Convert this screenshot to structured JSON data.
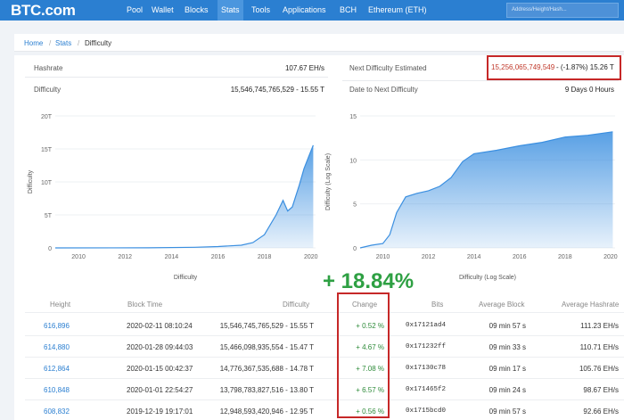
{
  "header": {
    "logo": "BTC.com",
    "nav": [
      "Pool",
      "Wallet",
      "Blocks",
      "Stats",
      "Tools",
      "Applications",
      "BCH",
      "Ethereum (ETH)"
    ],
    "active_nav": "Stats",
    "search_placeholder": "Address/Height/Hash..."
  },
  "breadcrumb": {
    "home": "Home",
    "stats": "Stats",
    "current": "Difficulty",
    "sep": "/"
  },
  "summary": {
    "hashrate_label": "Hashrate",
    "hashrate_value": "107.67 EH/s",
    "difficulty_label": "Difficulty",
    "difficulty_value": "15,546,745,765,529 - 15.55 T",
    "next_label": "Next Difficulty Estimated",
    "next_value": "15,256,065,749,549",
    "next_change": " - (-1.87%) 15.26 T",
    "date_label": "Date to Next Difficulty",
    "date_value": "9 Days 0 Hours"
  },
  "chart_data": [
    {
      "type": "area",
      "xlabel": "Difficulty",
      "ylabel": "Difficulty",
      "x_ticks": [
        "2010",
        "2012",
        "2014",
        "2016",
        "2018",
        "2020"
      ],
      "y_ticks": [
        "0",
        "5T",
        "10T",
        "15T",
        "20T"
      ],
      "xlim": [
        2009,
        2020.2
      ],
      "ylim": [
        0,
        20
      ],
      "y_unit": "T",
      "x": [
        2009.0,
        2013.0,
        2015.0,
        2016.0,
        2017.0,
        2017.5,
        2018.0,
        2018.5,
        2018.8,
        2019.0,
        2019.2,
        2019.5,
        2019.7,
        2019.9,
        2020.1
      ],
      "y": [
        0,
        0.02,
        0.1,
        0.2,
        0.4,
        0.8,
        2.0,
        5.0,
        7.2,
        5.6,
        6.2,
        9.5,
        12.0,
        13.8,
        15.55
      ],
      "color": "#3b8fe0"
    },
    {
      "type": "area",
      "xlabel": "Difficulty (Log Scale)",
      "ylabel": "Difficulty (Log Scale)",
      "x_ticks": [
        "2010",
        "2012",
        "2014",
        "2016",
        "2018",
        "2020"
      ],
      "y_ticks": [
        "0",
        "5",
        "10",
        "15"
      ],
      "xlim": [
        2009,
        2020.2
      ],
      "ylim": [
        0,
        15
      ],
      "x": [
        2009.0,
        2009.5,
        2010.0,
        2010.3,
        2010.6,
        2011.0,
        2011.5,
        2012.0,
        2012.5,
        2013.0,
        2013.5,
        2014.0,
        2015.0,
        2016.0,
        2017.0,
        2018.0,
        2019.0,
        2020.1
      ],
      "y": [
        0,
        0.3,
        0.5,
        1.5,
        4.0,
        5.8,
        6.2,
        6.5,
        7.0,
        8.0,
        9.8,
        10.7,
        11.1,
        11.6,
        12.0,
        12.6,
        12.8,
        13.2
      ],
      "color": "#3b8fe0"
    }
  ],
  "headline_change": "+ 18.84%",
  "table": {
    "headers": [
      "Height",
      "Block Time",
      "Difficulty",
      "Change",
      "Bits",
      "Average Block",
      "Average Hashrate"
    ],
    "rows": [
      [
        "616,896",
        "2020-02-11 08:10:24",
        "15,546,745,765,529 - 15.55 T",
        "+ 0.52 %",
        "0x17121ad4",
        "09 min 57 s",
        "111.23 EH/s"
      ],
      [
        "614,880",
        "2020-01-28 09:44:03",
        "15,466,098,935,554 - 15.47 T",
        "+ 4.67 %",
        "0x171232ff",
        "09 min 33 s",
        "110.71 EH/s"
      ],
      [
        "612,864",
        "2020-01-15 00:42:37",
        "14,776,367,535,688 - 14.78 T",
        "+ 7.08 %",
        "0x17130c78",
        "09 min 17 s",
        "105.76 EH/s"
      ],
      [
        "610,848",
        "2020-01-01 22:54:27",
        "13,798,783,827,516 - 13.80 T",
        "+ 6.57 %",
        "0x171465f2",
        "09 min 24 s",
        "98.67 EH/s"
      ],
      [
        "608,832",
        "2019-12-19 19:17:01",
        "12,948,593,420,946 - 12.95 T",
        "+ 0.56 %",
        "0x1715bcd0",
        "09 min 57 s",
        "92.66 EH/s"
      ]
    ]
  },
  "colors": {
    "nav_bg": "#2b7fd1",
    "accent": "#2b7fd1",
    "highlight": "#c62828",
    "positive": "#2ea043"
  }
}
